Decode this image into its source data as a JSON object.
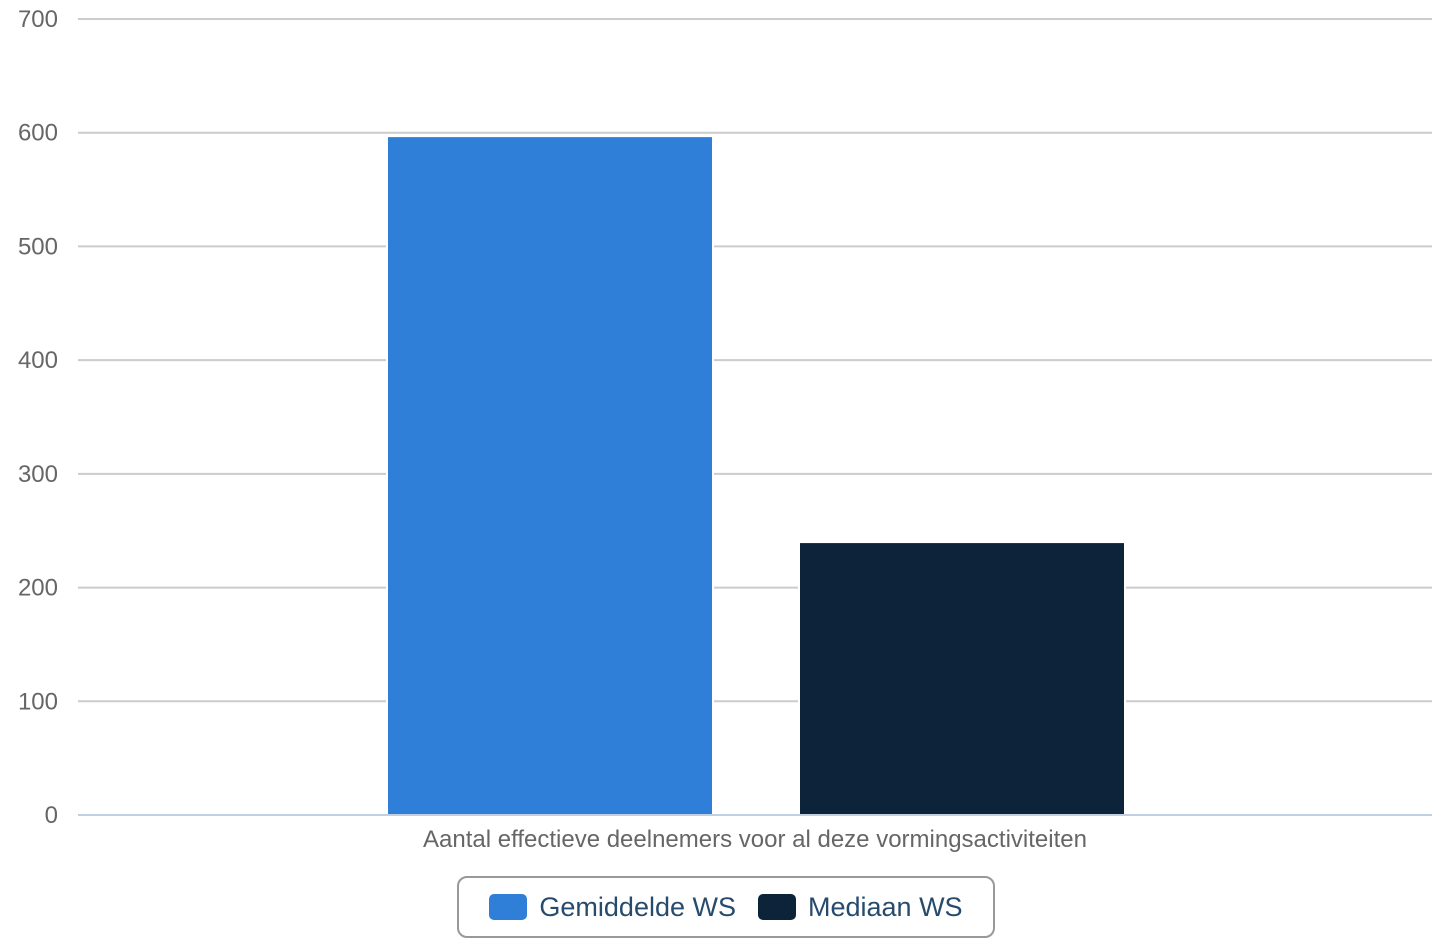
{
  "chart_data": {
    "type": "bar",
    "categories": [
      "Aantal effectieve deelnemers voor al deze vormingsactiviteiten"
    ],
    "series": [
      {
        "name": "Gemiddelde WS",
        "values": [
          597
        ],
        "color": "#2f7ed8"
      },
      {
        "name": "Mediaan WS",
        "values": [
          240
        ],
        "color": "#0d233a"
      }
    ],
    "ylim": [
      0,
      700
    ],
    "yticks": [
      0,
      100,
      200,
      300,
      400,
      500,
      600,
      700
    ],
    "grid": true,
    "legend_position": "bottom-center"
  },
  "colors": {
    "grid": "#cccccc",
    "axis": "#c0d0e0",
    "tick_text": "#666666",
    "legend_text": "#274b6d",
    "legend_border": "#999999"
  }
}
